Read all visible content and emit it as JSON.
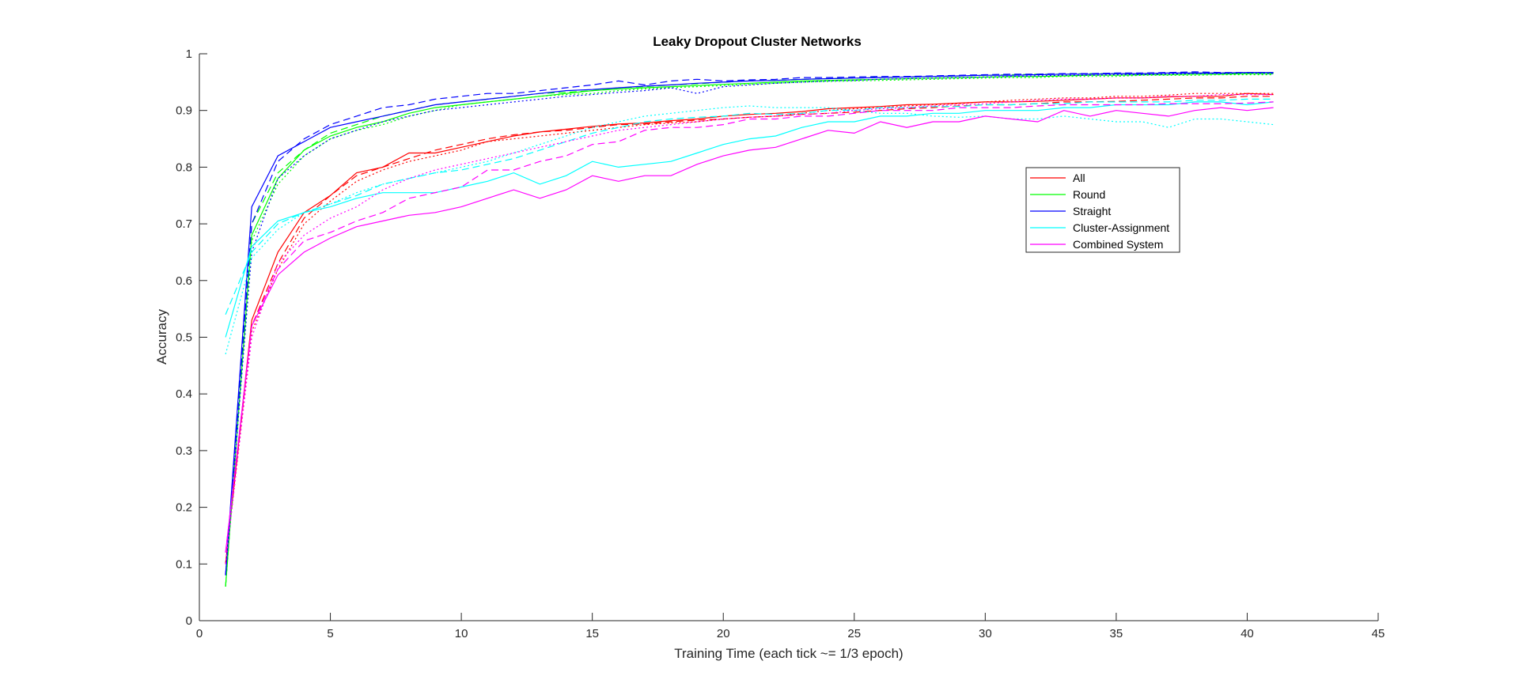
{
  "chart_data": {
    "type": "line",
    "title": "Leaky Dropout Cluster Networks",
    "xlabel": "Training Time (each tick ~= 1/3 epoch)",
    "ylabel": "Accuracy",
    "xlim": [
      0,
      45
    ],
    "ylim": [
      0,
      1
    ],
    "xticks": [
      "0",
      "5",
      "10",
      "15",
      "20",
      "25",
      "30",
      "35",
      "40",
      "45"
    ],
    "yticks": [
      "0",
      "0.1",
      "0.2",
      "0.3",
      "0.4",
      "0.5",
      "0.6",
      "0.7",
      "0.8",
      "0.9",
      "1"
    ],
    "grid": false,
    "legend_position": "upper-right",
    "x": [
      1,
      2,
      3,
      4,
      5,
      6,
      7,
      8,
      9,
      10,
      11,
      12,
      13,
      14,
      15,
      16,
      17,
      18,
      19,
      20,
      21,
      22,
      23,
      24,
      25,
      26,
      27,
      28,
      29,
      30,
      31,
      32,
      33,
      34,
      35,
      36,
      37,
      38,
      39,
      40,
      41
    ],
    "series": [
      {
        "name": "All",
        "color": "#ff0000",
        "style": "solid",
        "values": [
          0.1,
          0.53,
          0.65,
          0.72,
          0.75,
          0.79,
          0.8,
          0.825,
          0.825,
          0.835,
          0.845,
          0.855,
          0.862,
          0.867,
          0.872,
          0.876,
          0.878,
          0.882,
          0.885,
          0.89,
          0.893,
          0.895,
          0.898,
          0.903,
          0.905,
          0.907,
          0.91,
          0.911,
          0.913,
          0.915,
          0.915,
          0.916,
          0.918,
          0.92,
          0.922,
          0.922,
          0.924,
          0.925,
          0.925,
          0.93,
          0.928
        ]
      },
      {
        "name": "",
        "color": "#ff0000",
        "style": "dashed",
        "values": [
          0.1,
          0.52,
          0.63,
          0.71,
          0.75,
          0.785,
          0.8,
          0.815,
          0.83,
          0.84,
          0.85,
          0.857,
          0.862,
          0.865,
          0.87,
          0.875,
          0.876,
          0.88,
          0.883,
          0.885,
          0.888,
          0.89,
          0.893,
          0.895,
          0.897,
          0.9,
          0.903,
          0.905,
          0.908,
          0.91,
          0.91,
          0.912,
          0.915,
          0.915,
          0.916,
          0.918,
          0.92,
          0.922,
          0.922,
          0.925,
          0.925
        ]
      },
      {
        "name": "",
        "color": "#ff0000",
        "style": "dotted",
        "values": [
          0.1,
          0.51,
          0.62,
          0.7,
          0.74,
          0.775,
          0.795,
          0.81,
          0.82,
          0.83,
          0.845,
          0.85,
          0.855,
          0.86,
          0.865,
          0.87,
          0.875,
          0.878,
          0.88,
          0.885,
          0.888,
          0.89,
          0.895,
          0.9,
          0.903,
          0.905,
          0.908,
          0.91,
          0.912,
          0.915,
          0.918,
          0.92,
          0.922,
          0.922,
          0.925,
          0.925,
          0.927,
          0.93,
          0.93,
          0.93,
          0.93
        ]
      },
      {
        "name": "Round",
        "color": "#00ff00",
        "style": "solid",
        "values": [
          0.06,
          0.68,
          0.78,
          0.83,
          0.855,
          0.87,
          0.88,
          0.895,
          0.905,
          0.91,
          0.915,
          0.92,
          0.925,
          0.93,
          0.935,
          0.938,
          0.94,
          0.942,
          0.944,
          0.946,
          0.948,
          0.95,
          0.952,
          0.953,
          0.954,
          0.955,
          0.956,
          0.957,
          0.958,
          0.959,
          0.96,
          0.96,
          0.961,
          0.962,
          0.962,
          0.963,
          0.963,
          0.964,
          0.964,
          0.965,
          0.965
        ]
      },
      {
        "name": "",
        "color": "#00ff00",
        "style": "dashed",
        "values": [
          0.06,
          0.7,
          0.79,
          0.83,
          0.86,
          0.875,
          0.89,
          0.9,
          0.91,
          0.915,
          0.92,
          0.925,
          0.93,
          0.932,
          0.935,
          0.94,
          0.942,
          0.945,
          0.947,
          0.95,
          0.952,
          0.953,
          0.955,
          0.956,
          0.957,
          0.958,
          0.959,
          0.96,
          0.961,
          0.962,
          0.963,
          0.964,
          0.964,
          0.965,
          0.965,
          0.965,
          0.966,
          0.966,
          0.966,
          0.966,
          0.966
        ]
      },
      {
        "name": "",
        "color": "#00ff00",
        "style": "dotted",
        "values": [
          0.06,
          0.67,
          0.77,
          0.82,
          0.85,
          0.865,
          0.875,
          0.89,
          0.9,
          0.91,
          0.915,
          0.92,
          0.925,
          0.928,
          0.93,
          0.935,
          0.938,
          0.94,
          0.942,
          0.944,
          0.946,
          0.948,
          0.95,
          0.951,
          0.952,
          0.953,
          0.954,
          0.955,
          0.956,
          0.957,
          0.958,
          0.958,
          0.96,
          0.96,
          0.96,
          0.962,
          0.962,
          0.962,
          0.963,
          0.963,
          0.963
        ]
      },
      {
        "name": "Straight",
        "color": "#0000ff",
        "style": "solid",
        "values": [
          0.08,
          0.73,
          0.82,
          0.845,
          0.87,
          0.88,
          0.89,
          0.9,
          0.91,
          0.915,
          0.92,
          0.925,
          0.93,
          0.935,
          0.937,
          0.94,
          0.943,
          0.945,
          0.948,
          0.95,
          0.952,
          0.953,
          0.955,
          0.956,
          0.957,
          0.958,
          0.959,
          0.96,
          0.961,
          0.962,
          0.962,
          0.963,
          0.964,
          0.964,
          0.965,
          0.965,
          0.966,
          0.966,
          0.966,
          0.967,
          0.967
        ]
      },
      {
        "name": "",
        "color": "#0000ff",
        "style": "dashed",
        "values": [
          0.08,
          0.7,
          0.81,
          0.85,
          0.875,
          0.89,
          0.905,
          0.91,
          0.92,
          0.925,
          0.93,
          0.93,
          0.935,
          0.94,
          0.945,
          0.952,
          0.945,
          0.952,
          0.955,
          0.952,
          0.954,
          0.955,
          0.958,
          0.958,
          0.959,
          0.96,
          0.96,
          0.961,
          0.962,
          0.963,
          0.964,
          0.964,
          0.965,
          0.965,
          0.966,
          0.966,
          0.967,
          0.968,
          0.967,
          0.967,
          0.967
        ]
      },
      {
        "name": "",
        "color": "#0000ff",
        "style": "dotted",
        "values": [
          0.08,
          0.65,
          0.78,
          0.82,
          0.85,
          0.865,
          0.88,
          0.89,
          0.9,
          0.905,
          0.91,
          0.915,
          0.92,
          0.925,
          0.928,
          0.932,
          0.935,
          0.94,
          0.93,
          0.942,
          0.945,
          0.948,
          0.95,
          0.952,
          0.953,
          0.955,
          0.956,
          0.957,
          0.958,
          0.959,
          0.96,
          0.961,
          0.962,
          0.962,
          0.963,
          0.963,
          0.964,
          0.965,
          0.965,
          0.966,
          0.965
        ]
      },
      {
        "name": "Cluster-Assignment",
        "color": "#00ffff",
        "style": "solid",
        "values": [
          0.5,
          0.66,
          0.705,
          0.72,
          0.73,
          0.745,
          0.755,
          0.755,
          0.755,
          0.765,
          0.775,
          0.79,
          0.77,
          0.785,
          0.81,
          0.8,
          0.805,
          0.81,
          0.825,
          0.84,
          0.85,
          0.855,
          0.87,
          0.88,
          0.88,
          0.89,
          0.89,
          0.895,
          0.895,
          0.9,
          0.9,
          0.9,
          0.905,
          0.905,
          0.91,
          0.91,
          0.91,
          0.915,
          0.915,
          0.91,
          0.915
        ]
      },
      {
        "name": "",
        "color": "#00ffff",
        "style": "dashed",
        "values": [
          0.54,
          0.65,
          0.7,
          0.72,
          0.735,
          0.75,
          0.77,
          0.78,
          0.79,
          0.795,
          0.805,
          0.815,
          0.83,
          0.845,
          0.86,
          0.87,
          0.88,
          0.885,
          0.888,
          0.89,
          0.895,
          0.893,
          0.895,
          0.9,
          0.9,
          0.905,
          0.905,
          0.907,
          0.907,
          0.91,
          0.91,
          0.912,
          0.912,
          0.915,
          0.915,
          0.915,
          0.915,
          0.918,
          0.918,
          0.92,
          0.92
        ]
      },
      {
        "name": "",
        "color": "#00ffff",
        "style": "dotted",
        "values": [
          0.47,
          0.64,
          0.69,
          0.72,
          0.735,
          0.755,
          0.77,
          0.78,
          0.79,
          0.8,
          0.81,
          0.825,
          0.84,
          0.855,
          0.87,
          0.88,
          0.89,
          0.895,
          0.9,
          0.905,
          0.908,
          0.905,
          0.905,
          0.905,
          0.9,
          0.895,
          0.895,
          0.89,
          0.888,
          0.89,
          0.885,
          0.885,
          0.89,
          0.885,
          0.88,
          0.88,
          0.87,
          0.885,
          0.885,
          0.88,
          0.875
        ]
      },
      {
        "name": "Combined System",
        "color": "#ff00ff",
        "style": "solid",
        "values": [
          0.12,
          0.52,
          0.61,
          0.65,
          0.675,
          0.695,
          0.705,
          0.715,
          0.72,
          0.73,
          0.745,
          0.76,
          0.745,
          0.76,
          0.785,
          0.775,
          0.785,
          0.785,
          0.805,
          0.82,
          0.83,
          0.835,
          0.85,
          0.865,
          0.86,
          0.88,
          0.87,
          0.88,
          0.88,
          0.89,
          0.885,
          0.88,
          0.9,
          0.89,
          0.9,
          0.895,
          0.89,
          0.9,
          0.905,
          0.9,
          0.905
        ]
      },
      {
        "name": "",
        "color": "#ff00ff",
        "style": "dashed",
        "values": [
          0.12,
          0.52,
          0.62,
          0.67,
          0.685,
          0.705,
          0.72,
          0.745,
          0.755,
          0.765,
          0.795,
          0.795,
          0.81,
          0.82,
          0.84,
          0.845,
          0.865,
          0.87,
          0.87,
          0.875,
          0.885,
          0.885,
          0.89,
          0.89,
          0.895,
          0.9,
          0.9,
          0.9,
          0.905,
          0.905,
          0.905,
          0.908,
          0.91,
          0.91,
          0.91,
          0.91,
          0.912,
          0.912,
          0.912,
          0.913,
          0.915
        ]
      },
      {
        "name": "",
        "color": "#ff00ff",
        "style": "dotted",
        "values": [
          0.1,
          0.5,
          0.63,
          0.68,
          0.71,
          0.73,
          0.76,
          0.78,
          0.795,
          0.805,
          0.815,
          0.825,
          0.835,
          0.845,
          0.855,
          0.865,
          0.87,
          0.875,
          0.88,
          0.885,
          0.888,
          0.89,
          0.893,
          0.895,
          0.9,
          0.903,
          0.905,
          0.908,
          0.91,
          0.912,
          0.915,
          0.918,
          0.92,
          0.92,
          0.922,
          0.922,
          0.925,
          0.925,
          0.928,
          0.928,
          0.928
        ]
      }
    ]
  }
}
